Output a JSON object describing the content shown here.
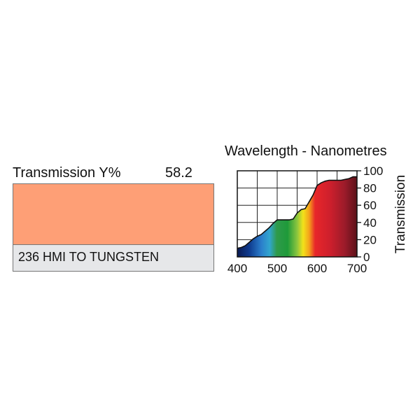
{
  "filter": {
    "transmission_label": "Transmission Y%",
    "transmission_value": "58.2",
    "name": "236 HMI TO TUNGSTEN",
    "swatch_color": "#fe9f76"
  },
  "chart_data": {
    "type": "area",
    "title": "Wavelength - Nanometres",
    "xlabel": "",
    "ylabel": "Transmission",
    "xlim": [
      400,
      700
    ],
    "ylim": [
      0,
      100
    ],
    "xticks": [
      400,
      500,
      600,
      700
    ],
    "yticks": [
      0,
      20,
      40,
      60,
      80,
      100
    ],
    "grid": true,
    "series": [
      {
        "x": [
          400,
          410,
          420,
          430,
          440,
          450,
          460,
          470,
          480,
          490,
          500,
          510,
          520,
          530,
          540,
          550,
          560,
          570,
          580,
          590,
          600,
          610,
          620,
          630,
          640,
          650,
          660,
          670,
          680,
          690,
          700
        ],
        "values": [
          10,
          11,
          13,
          17,
          21,
          24,
          26,
          30,
          34,
          39,
          43,
          43,
          43,
          43,
          44,
          51,
          55,
          56,
          64,
          72,
          83,
          86,
          88,
          89,
          89,
          89,
          89,
          90,
          91,
          93,
          93
        ]
      }
    ]
  }
}
